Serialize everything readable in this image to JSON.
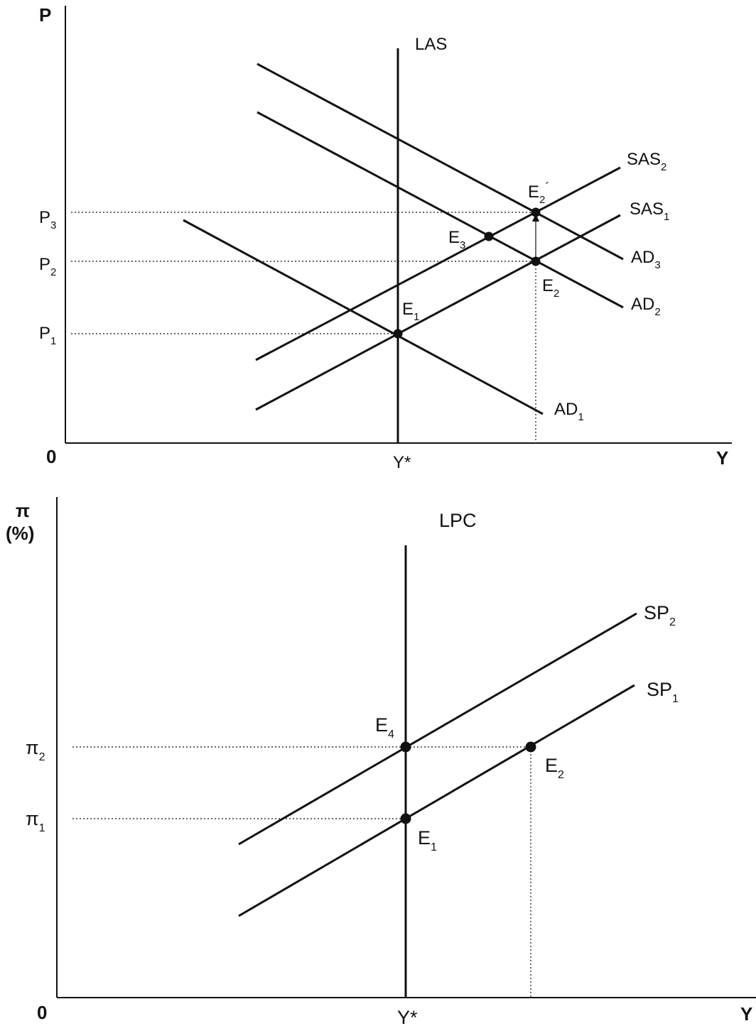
{
  "top_panel": {
    "y_axis_title": "P",
    "x_axis_title": "Y",
    "origin_label": "0",
    "y_ticks": [
      {
        "base": "P",
        "sub": "3"
      },
      {
        "base": "P",
        "sub": "2"
      },
      {
        "base": "P",
        "sub": "1"
      }
    ],
    "x_tick": "Y*",
    "curves": {
      "las": {
        "base": "LAS",
        "sub": ""
      },
      "sas2": {
        "base": "SAS",
        "sub": "2"
      },
      "sas1": {
        "base": "SAS",
        "sub": "1"
      },
      "ad3": {
        "base": "AD",
        "sub": "3"
      },
      "ad2": {
        "base": "AD",
        "sub": "2"
      },
      "ad1": {
        "base": "AD",
        "sub": "1"
      }
    },
    "points": {
      "e2prime": {
        "base": "E",
        "sub": "2",
        "sup": "´"
      },
      "e3": {
        "base": "E",
        "sub": "3"
      },
      "e2": {
        "base": "E",
        "sub": "2"
      },
      "e1": {
        "base": "E",
        "sub": "1"
      }
    }
  },
  "bottom_panel": {
    "y_axis_title_symbol": "π",
    "y_axis_title_unit": "(%)",
    "x_axis_title": "Y",
    "origin_label": "0",
    "y_ticks": [
      {
        "base": "π",
        "sub": "2"
      },
      {
        "base": "π",
        "sub": "1"
      }
    ],
    "x_tick": "Y*",
    "curves": {
      "lpc": {
        "base": "LPC",
        "sub": ""
      },
      "sp2": {
        "base": "SP",
        "sub": "2"
      },
      "sp1": {
        "base": "SP",
        "sub": "1"
      }
    },
    "points": {
      "e4": {
        "base": "E",
        "sub": "4"
      },
      "e2": {
        "base": "E",
        "sub": "2"
      },
      "e1": {
        "base": "E",
        "sub": "1"
      }
    }
  }
}
